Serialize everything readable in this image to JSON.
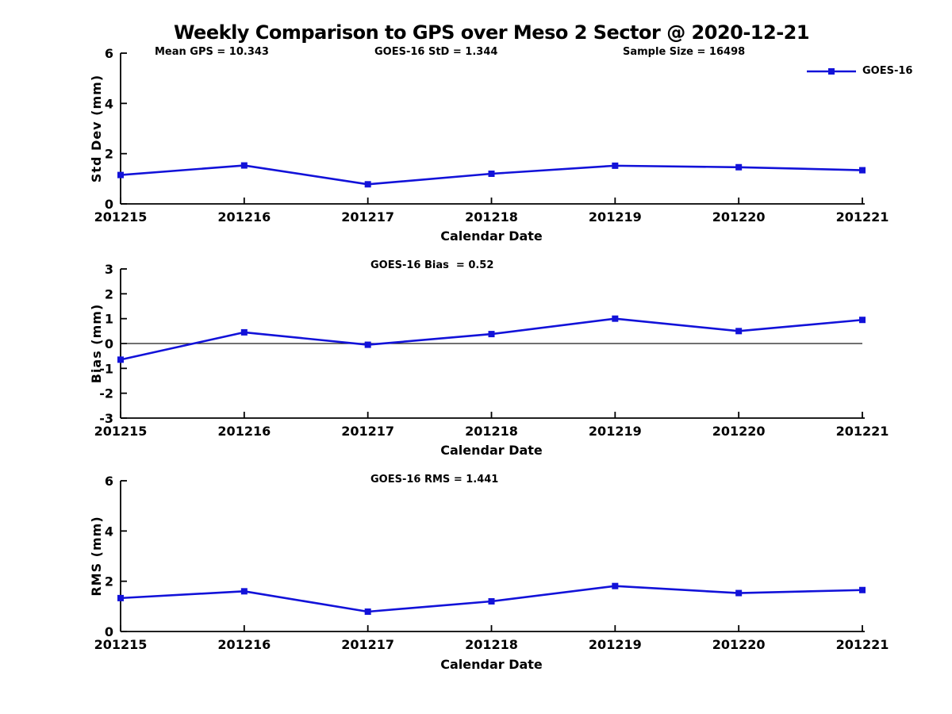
{
  "title": "Weekly Comparison to GPS over Meso 2 Sector @ 2020-12-21",
  "legend": {
    "label": "GOES-16"
  },
  "colors": {
    "series": "#1212d9",
    "axis": "#000000"
  },
  "chart_data": [
    {
      "type": "line",
      "name": "std-dev",
      "title": "",
      "xlabel": "Calendar Date",
      "ylabel": "Std Dev (mm)",
      "categories": [
        "201215",
        "201216",
        "201217",
        "201218",
        "201219",
        "201220",
        "201221"
      ],
      "series": [
        {
          "name": "GOES-16",
          "values": [
            1.15,
            1.53,
            0.78,
            1.2,
            1.52,
            1.46,
            1.34
          ]
        }
      ],
      "ylim": [
        0,
        6
      ],
      "yticks": [
        0,
        2,
        4,
        6
      ],
      "zero_line": false,
      "grid": false,
      "legend_position": "top-right",
      "annotations": [
        "Mean GPS = 10.343",
        "GOES-16 StD = 1.344",
        "Sample Size = 16498"
      ]
    },
    {
      "type": "line",
      "name": "bias",
      "title": "",
      "xlabel": "Calendar Date",
      "ylabel": "Bias (mm)",
      "categories": [
        "201215",
        "201216",
        "201217",
        "201218",
        "201219",
        "201220",
        "201221"
      ],
      "series": [
        {
          "name": "GOES-16",
          "values": [
            -0.65,
            0.45,
            -0.05,
            0.38,
            1.0,
            0.5,
            0.95
          ]
        }
      ],
      "ylim": [
        -3,
        3
      ],
      "yticks": [
        -3,
        -2,
        -1,
        0,
        1,
        2,
        3
      ],
      "zero_line": true,
      "grid": false,
      "legend_position": "none",
      "annotations": [
        "GOES-16 Bias  = 0.52"
      ]
    },
    {
      "type": "line",
      "name": "rms",
      "title": "",
      "xlabel": "Calendar Date",
      "ylabel": "RMS (mm)",
      "categories": [
        "201215",
        "201216",
        "201217",
        "201218",
        "201219",
        "201220",
        "201221"
      ],
      "series": [
        {
          "name": "GOES-16",
          "values": [
            1.33,
            1.6,
            0.79,
            1.2,
            1.81,
            1.53,
            1.65
          ]
        }
      ],
      "ylim": [
        0,
        6
      ],
      "yticks": [
        0,
        2,
        4,
        6
      ],
      "zero_line": false,
      "grid": false,
      "legend_position": "none",
      "annotations": [
        "GOES-16 RMS = 1.441"
      ]
    }
  ]
}
